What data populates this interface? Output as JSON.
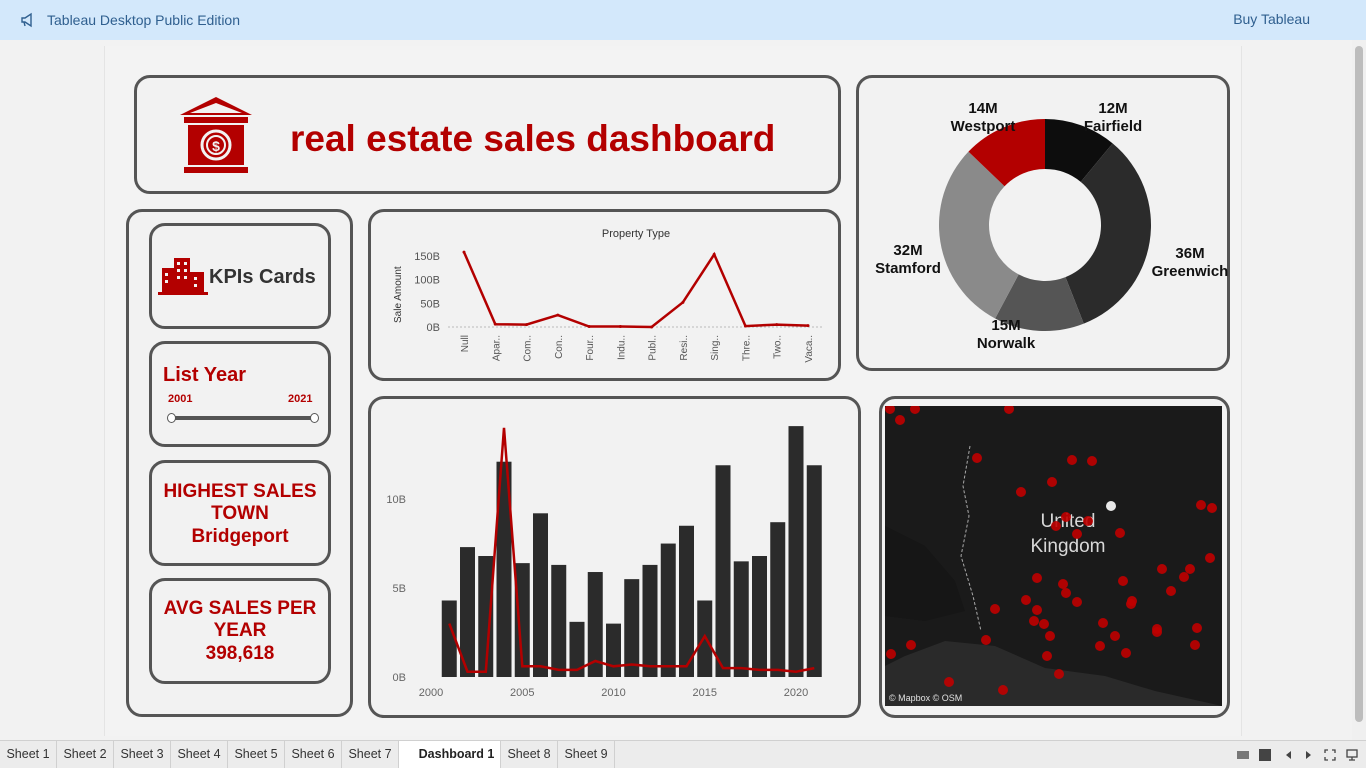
{
  "topbar": {
    "title": "Tableau Desktop Public Edition",
    "buy_label": "Buy Tableau"
  },
  "header": {
    "title": "real estate sales dashboard"
  },
  "kpi": {
    "cards_label": "KPIs Cards",
    "list_year": {
      "label": "List Year",
      "min": "2001",
      "max": "2021"
    },
    "highest_sales": {
      "line1": "HIGHEST SALES",
      "line2": "TOWN",
      "value": "Bridgeport"
    },
    "avg_sales": {
      "line1": "AVG SALES PER",
      "line2": "YEAR",
      "value": "398,618"
    }
  },
  "colors": {
    "accent": "#b30000",
    "dark_bar": "#2b2b2b",
    "border": "#555555"
  },
  "map": {
    "attribution": "© Mapbox © OSM",
    "label_line1": "United",
    "label_line2": "Kingdom"
  },
  "chart_data": [
    {
      "type": "line",
      "title": "Property Type",
      "ylabel": "Sale Amount",
      "categories": [
        "Null",
        "Apar..",
        "Com..",
        "Con..",
        "Four..",
        "Indu..",
        "Publ..",
        "Resi..",
        "Sing..",
        "Thre..",
        "Two..",
        "Vaca.."
      ],
      "values": [
        158,
        6,
        5,
        25,
        1,
        1,
        0,
        52,
        153,
        2,
        5,
        3
      ],
      "yticks": [
        "150B",
        "100B",
        "50B",
        "0B"
      ],
      "ylim": [
        0,
        175
      ],
      "units": "B"
    },
    {
      "type": "pie",
      "donut": true,
      "slices": [
        {
          "label": "Fairfield",
          "value_label": "12M",
          "value": 12,
          "color": "#0d0d0d"
        },
        {
          "label": "Greenwich",
          "value_label": "36M",
          "value": 36,
          "color": "#2b2b2b"
        },
        {
          "label": "Norwalk",
          "value_label": "15M",
          "value": 15,
          "color": "#555555"
        },
        {
          "label": "Stamford",
          "value_label": "32M",
          "value": 32,
          "color": "#8a8a8a"
        },
        {
          "label": "Westport",
          "value_label": "14M",
          "value": 14,
          "color": "#b30000"
        }
      ]
    },
    {
      "type": "bar",
      "x": [
        2001,
        2002,
        2003,
        2004,
        2005,
        2006,
        2007,
        2008,
        2009,
        2010,
        2011,
        2012,
        2013,
        2014,
        2015,
        2016,
        2017,
        2018,
        2019,
        2020,
        2021
      ],
      "values": [
        4.3,
        7.3,
        6.8,
        12.1,
        6.4,
        9.2,
        6.3,
        3.1,
        5.9,
        3.0,
        5.5,
        6.3,
        7.5,
        8.5,
        4.3,
        11.9,
        6.5,
        6.8,
        8.7,
        14.1,
        11.9
      ],
      "line": [
        3.0,
        0.3,
        0.3,
        14.0,
        0.6,
        0.6,
        0.4,
        0.4,
        0.9,
        0.6,
        0.7,
        0.6,
        0.6,
        0.6,
        2.3,
        0.5,
        0.5,
        0.4,
        0.4,
        0.3,
        0.5
      ],
      "yticks": [
        "10B",
        "5B",
        "0B"
      ],
      "ytick_values": [
        10,
        5,
        0
      ],
      "xticks": [
        "2000",
        "2005",
        "2010",
        "2015",
        "2020"
      ],
      "xtick_values": [
        2000,
        2005,
        2010,
        2015,
        2020
      ],
      "ylim": [
        0,
        14.5
      ],
      "xlim": [
        2000,
        2022
      ]
    }
  ],
  "tabs": [
    {
      "label": "Sheet 1"
    },
    {
      "label": "Sheet 2"
    },
    {
      "label": "Sheet 3"
    },
    {
      "label": "Sheet 4"
    },
    {
      "label": "Sheet 5"
    },
    {
      "label": "Sheet 6"
    },
    {
      "label": "Sheet 7"
    },
    {
      "label": "Dashboard 1",
      "active": true
    },
    {
      "label": "Sheet 8"
    },
    {
      "label": "Sheet 9"
    }
  ]
}
